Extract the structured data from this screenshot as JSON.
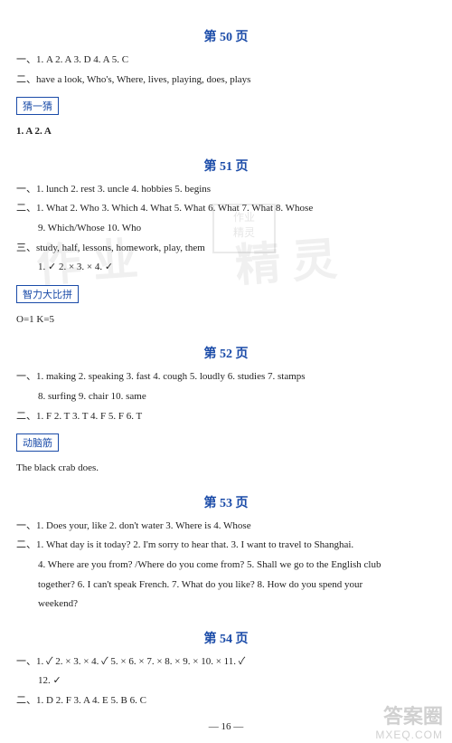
{
  "pages": {
    "p50": {
      "title": "第 50 页",
      "lines": [
        "一、1. A  2. A  3. D  4. A  5. C",
        "二、have a look, Who's, Where, lives, playing, does, plays"
      ],
      "box": "猜一猜",
      "box_line": "1. A  2. A"
    },
    "p51": {
      "title": "第 51 页",
      "lines": [
        "一、1. lunch  2. rest  3. uncle  4. hobbies  5. begins",
        "二、1. What  2. Who  3. Which  4. What  5. What  6. What  7. What  8. Whose",
        "9. Which/Whose  10. Who",
        "三、study, half, lessons, homework, play, them",
        "1. ✓  2. ×  3. ×  4. ✓"
      ],
      "box": "智力大比拼",
      "box_line": "O=1  K=5"
    },
    "p52": {
      "title": "第 52 页",
      "lines": [
        "一、1. making  2. speaking  3. fast  4. cough  5. loudly  6. studies  7. stamps",
        "8. surfing  9. chair  10. same",
        "二、1. F  2. T  3. T  4. F  5. F  6. T"
      ],
      "box": "动脑筋",
      "box_line": "The black crab does."
    },
    "p53": {
      "title": "第 53 页",
      "lines": [
        "一、1. Does your, like  2. don't water  3. Where is  4. Whose",
        "二、1. What day is it today?  2. I'm sorry to hear that.  3. I want to travel to Shanghai.",
        "4. Where are you from? /Where do you come from?  5. Shall we go to the English club",
        "together?  6. I can't speak French.  7. What do you like?  8. How do you spend your",
        "weekend?"
      ]
    },
    "p54": {
      "title": "第 54 页",
      "lines": [
        "一、1. ✓  2. ×  3. ×  4. ✓  5. ×  6. ×  7. ×  8. ×  9. ×  10. ×  11. ✓",
        "12. ✓",
        "二、1. D  2. F  3. A  4. E  5. B  6. C"
      ]
    }
  },
  "footer_page": "16",
  "watermarks": {
    "wm1": "作 业",
    "wm2": "精 灵",
    "logo": "答案圈",
    "url": "MXEQ.COM",
    "stamp_l1": "作业",
    "stamp_l2": "精灵"
  }
}
